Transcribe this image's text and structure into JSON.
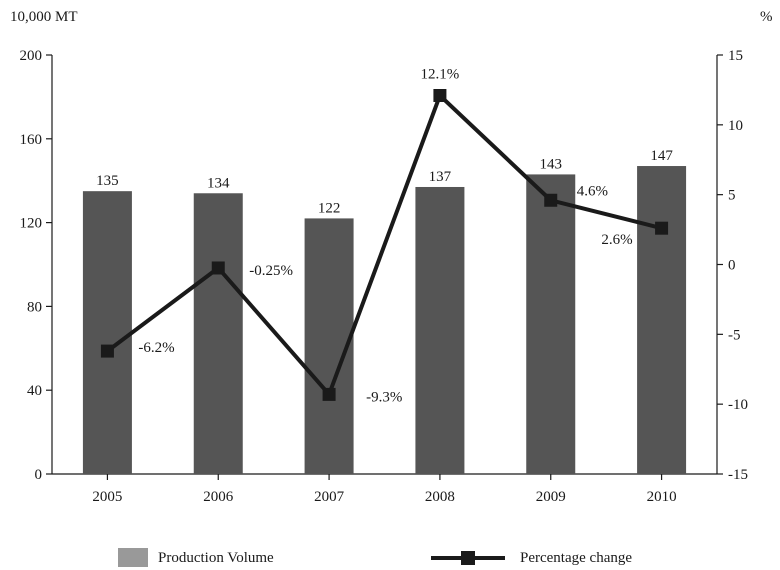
{
  "chart_data": {
    "type": "bar+line",
    "categories": [
      "2005",
      "2006",
      "2007",
      "2008",
      "2009",
      "2010"
    ],
    "series": [
      {
        "name": "Production Volume",
        "type": "bar",
        "axis": "left",
        "values": [
          135,
          134,
          122,
          137,
          143,
          147
        ],
        "labels": [
          "135",
          "134",
          "122",
          "137",
          "143",
          "147"
        ],
        "color": "#555555"
      },
      {
        "name": "Percentage change",
        "type": "line",
        "axis": "right",
        "values": [
          -6.2,
          -0.25,
          -9.3,
          12.1,
          4.6,
          2.6
        ],
        "labels": [
          "-6.2%",
          "-0.25%",
          "-9.3%",
          "12.1%",
          "4.6%",
          "2.6%"
        ],
        "color": "#1a1a1a"
      }
    ],
    "left_axis": {
      "unit": "10,000 MT",
      "range": [
        0,
        200
      ],
      "ticks": [
        0,
        40,
        80,
        120,
        160,
        200
      ],
      "tick_labels": [
        "0",
        "40",
        "80",
        "120",
        "160",
        "200"
      ]
    },
    "right_axis": {
      "unit": "%",
      "range": [
        -15,
        15
      ],
      "ticks": [
        -15,
        -10,
        -5,
        0,
        5,
        10,
        15
      ],
      "tick_labels": [
        "-15",
        "-10",
        "-5",
        "0",
        "5",
        "10",
        "15"
      ]
    },
    "grid": false,
    "legend": {
      "placement": "bottom",
      "bar_swatch_color": "#999999"
    }
  }
}
